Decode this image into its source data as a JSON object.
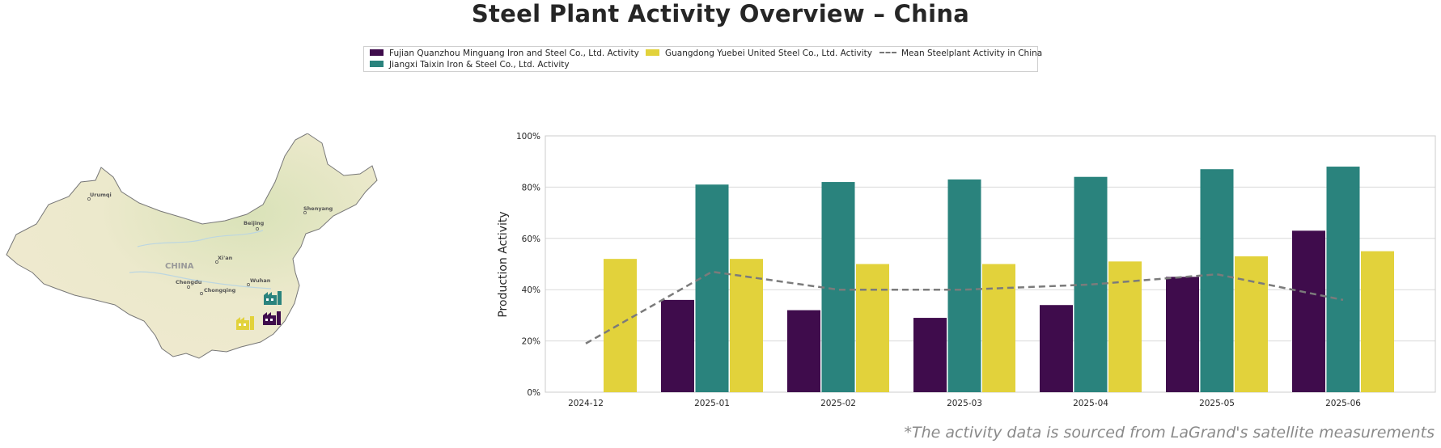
{
  "title": "Steel Plant Activity Overview – China",
  "footnote": "*The activity data is sourced from LaGrand's satellite measurements",
  "map": {
    "country_label": "CHINA",
    "cities": [
      "Urumqi",
      "Beijing",
      "Shenyang",
      "Xi'an",
      "Chengdu",
      "Chongqing",
      "Wuhan"
    ]
  },
  "colors": {
    "fujian": "#3f0c4c",
    "jiangxi": "#2a837d",
    "guangdong": "#e2d23b",
    "mean": "#7b7b7b"
  },
  "chart_data": {
    "type": "bar",
    "ylabel": "Production Activity",
    "ylim": [
      0,
      100
    ],
    "yticks": [
      "0%",
      "20%",
      "40%",
      "60%",
      "80%",
      "100%"
    ],
    "categories": [
      "2024-12",
      "2025-01",
      "2025-02",
      "2025-03",
      "2025-04",
      "2025-05",
      "2025-06"
    ],
    "series": [
      {
        "name": "Fujian Quanzhou Minguang Iron and Steel Co., Ltd. Activity",
        "values": [
          null,
          36,
          32,
          29,
          34,
          45,
          63
        ]
      },
      {
        "name": "Jiangxi Taixin Iron & Steel Co., Ltd. Activity",
        "values": [
          null,
          81,
          82,
          83,
          84,
          87,
          88
        ]
      },
      {
        "name": "Guangdong Yuebei United Steel Co., Ltd. Activity",
        "values": [
          52,
          52,
          50,
          50,
          51,
          53,
          55
        ]
      }
    ],
    "line": {
      "name": "Mean Steelplant Activity in China",
      "values": [
        19,
        47,
        40,
        40,
        42,
        46,
        36
      ]
    },
    "grid": true,
    "legend_position": "top-center"
  }
}
